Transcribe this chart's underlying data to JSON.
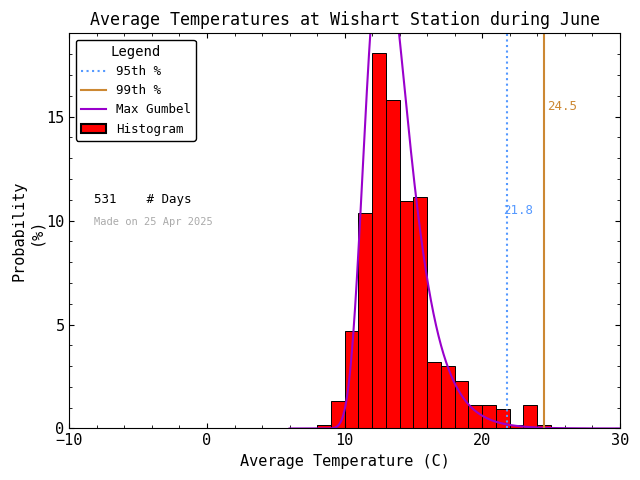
{
  "title": "Average Temperatures at Wishart Station during June",
  "xlabel": "Average Temperature (C)",
  "ylabel": "Probability\n(%)",
  "xlim": [
    -10,
    30
  ],
  "ylim": [
    0,
    19
  ],
  "bar_edges": [
    8,
    9,
    10,
    11,
    12,
    13,
    14,
    15,
    16,
    17,
    18,
    19,
    20,
    21,
    22,
    23,
    24,
    25,
    26
  ],
  "bar_values": [
    0.19,
    1.32,
    4.71,
    10.36,
    18.08,
    15.82,
    10.92,
    11.11,
    3.2,
    3.01,
    2.26,
    1.13,
    1.13,
    0.94,
    0.19,
    1.13,
    0.19,
    0.0
  ],
  "bar_color": "#ff0000",
  "bar_edge_color": "#000000",
  "gumbel_color": "#9900cc",
  "gumbel_mu": 12.8,
  "gumbel_beta": 1.55,
  "p95_color": "#5599ff",
  "p99_color": "#cc8833",
  "p95_value": 21.8,
  "p99_value": 24.5,
  "n_days": "531",
  "made_on": "Made on 25 Apr 2025",
  "background_color": "#ffffff",
  "title_fontsize": 12,
  "axis_fontsize": 11,
  "tick_fontsize": 11,
  "legend_fontsize": 9
}
